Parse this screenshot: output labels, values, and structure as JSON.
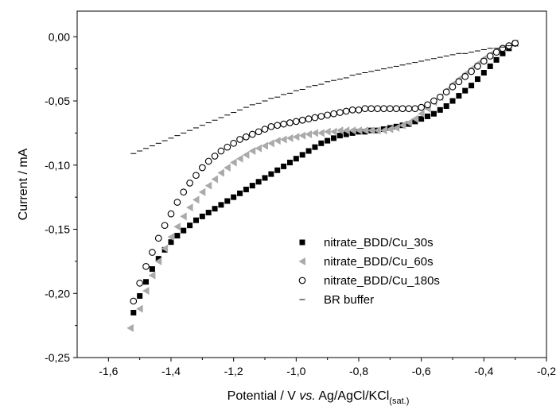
{
  "chart_data": {
    "type": "scatter",
    "xlabel": {
      "prefix": "Potential / V ",
      "italic": "vs.",
      "main": " Ag/AgCl/KCl",
      "subscript": "(sat.)"
    },
    "ylabel": "Current / mA",
    "xlim": [
      -1.7,
      -0.2
    ],
    "ylim": [
      -0.25,
      0.02
    ],
    "x_ticks": [
      -1.6,
      -1.4,
      -1.2,
      -1.0,
      -0.8,
      -0.6,
      -0.4,
      -0.2
    ],
    "x_tick_labels": [
      "-1,6",
      "-1,4",
      "-1,2",
      "-1,0",
      "-0,8",
      "-0,6",
      "-0,4",
      "-0,2"
    ],
    "y_ticks": [
      0.0,
      -0.05,
      -0.1,
      -0.15,
      -0.2,
      -0.25
    ],
    "y_tick_labels": [
      "0,00",
      "-0,05",
      "-0,10",
      "-0,15",
      "-0,20",
      "-0,25"
    ],
    "grid": false,
    "legend_position": "bottom-right",
    "series": [
      {
        "name": "nitrate_BDD/Cu_30s",
        "marker": "square",
        "color": "#000000",
        "x": [
          -1.52,
          -1.5,
          -1.48,
          -1.46,
          -1.44,
          -1.42,
          -1.4,
          -1.38,
          -1.36,
          -1.34,
          -1.32,
          -1.3,
          -1.28,
          -1.26,
          -1.24,
          -1.22,
          -1.2,
          -1.18,
          -1.16,
          -1.14,
          -1.12,
          -1.1,
          -1.08,
          -1.06,
          -1.04,
          -1.02,
          -1.0,
          -0.98,
          -0.96,
          -0.94,
          -0.92,
          -0.9,
          -0.88,
          -0.86,
          -0.84,
          -0.82,
          -0.8,
          -0.78,
          -0.76,
          -0.74,
          -0.72,
          -0.7,
          -0.68,
          -0.66,
          -0.64,
          -0.62,
          -0.6,
          -0.58,
          -0.56,
          -0.54,
          -0.52,
          -0.5,
          -0.48,
          -0.46,
          -0.44,
          -0.42,
          -0.4,
          -0.38,
          -0.36,
          -0.34,
          -0.32,
          -0.3
        ],
        "y": [
          -0.215,
          -0.202,
          -0.191,
          -0.181,
          -0.173,
          -0.166,
          -0.16,
          -0.155,
          -0.151,
          -0.147,
          -0.143,
          -0.14,
          -0.137,
          -0.134,
          -0.131,
          -0.128,
          -0.125,
          -0.122,
          -0.119,
          -0.116,
          -0.113,
          -0.11,
          -0.107,
          -0.104,
          -0.101,
          -0.098,
          -0.095,
          -0.092,
          -0.089,
          -0.086,
          -0.083,
          -0.081,
          -0.079,
          -0.077,
          -0.076,
          -0.075,
          -0.074,
          -0.074,
          -0.073,
          -0.073,
          -0.072,
          -0.071,
          -0.07,
          -0.069,
          -0.068,
          -0.066,
          -0.064,
          -0.062,
          -0.06,
          -0.057,
          -0.054,
          -0.05,
          -0.046,
          -0.042,
          -0.038,
          -0.033,
          -0.028,
          -0.023,
          -0.018,
          -0.013,
          -0.009,
          -0.005
        ]
      },
      {
        "name": "nitrate_BDD/Cu_60s",
        "marker": "triangle-left",
        "color": "#aaaaaa",
        "x": [
          -1.53,
          -1.5,
          -1.48,
          -1.46,
          -1.44,
          -1.42,
          -1.4,
          -1.38,
          -1.36,
          -1.34,
          -1.32,
          -1.3,
          -1.28,
          -1.26,
          -1.24,
          -1.22,
          -1.2,
          -1.18,
          -1.16,
          -1.14,
          -1.12,
          -1.1,
          -1.08,
          -1.06,
          -1.04,
          -1.02,
          -1.0,
          -0.98,
          -0.96,
          -0.94,
          -0.92,
          -0.9,
          -0.88,
          -0.86,
          -0.84,
          -0.82,
          -0.8,
          -0.78,
          -0.76,
          -0.74,
          -0.72,
          -0.7,
          -0.68,
          -0.66,
          -0.64,
          -0.62,
          -0.6,
          -0.58,
          -0.56,
          -0.54,
          -0.52,
          -0.5,
          -0.48,
          -0.46,
          -0.44,
          -0.42,
          -0.4,
          -0.38,
          -0.36,
          -0.34,
          -0.32,
          -0.3
        ],
        "y": [
          -0.227,
          -0.212,
          -0.198,
          -0.186,
          -0.175,
          -0.165,
          -0.156,
          -0.148,
          -0.14,
          -0.133,
          -0.127,
          -0.121,
          -0.116,
          -0.111,
          -0.106,
          -0.102,
          -0.098,
          -0.095,
          -0.092,
          -0.089,
          -0.087,
          -0.085,
          -0.083,
          -0.081,
          -0.08,
          -0.079,
          -0.078,
          -0.077,
          -0.076,
          -0.075,
          -0.075,
          -0.074,
          -0.074,
          -0.073,
          -0.073,
          -0.073,
          -0.073,
          -0.073,
          -0.073,
          -0.073,
          -0.073,
          -0.072,
          -0.071,
          -0.069,
          -0.067,
          -0.064,
          -0.06,
          -0.056,
          -0.051,
          -0.047,
          -0.042,
          -0.037,
          -0.033,
          -0.029,
          -0.025,
          -0.021,
          -0.017,
          -0.014,
          -0.011,
          -0.009,
          -0.007,
          -0.005
        ]
      },
      {
        "name": "nitrate_BDD/Cu_180s",
        "marker": "circle-open",
        "color": "#000000",
        "x": [
          -1.52,
          -1.5,
          -1.48,
          -1.46,
          -1.44,
          -1.42,
          -1.4,
          -1.38,
          -1.36,
          -1.34,
          -1.32,
          -1.3,
          -1.28,
          -1.26,
          -1.24,
          -1.22,
          -1.2,
          -1.18,
          -1.16,
          -1.14,
          -1.12,
          -1.1,
          -1.08,
          -1.06,
          -1.04,
          -1.02,
          -1.0,
          -0.98,
          -0.96,
          -0.94,
          -0.92,
          -0.9,
          -0.88,
          -0.86,
          -0.84,
          -0.82,
          -0.8,
          -0.78,
          -0.76,
          -0.74,
          -0.72,
          -0.7,
          -0.68,
          -0.66,
          -0.64,
          -0.62,
          -0.6,
          -0.58,
          -0.56,
          -0.54,
          -0.52,
          -0.5,
          -0.48,
          -0.46,
          -0.44,
          -0.42,
          -0.4,
          -0.38,
          -0.36,
          -0.34,
          -0.32,
          -0.3
        ],
        "y": [
          -0.206,
          -0.192,
          -0.179,
          -0.168,
          -0.157,
          -0.147,
          -0.138,
          -0.129,
          -0.121,
          -0.114,
          -0.108,
          -0.102,
          -0.097,
          -0.093,
          -0.089,
          -0.086,
          -0.083,
          -0.08,
          -0.078,
          -0.076,
          -0.074,
          -0.072,
          -0.07,
          -0.069,
          -0.068,
          -0.067,
          -0.066,
          -0.065,
          -0.064,
          -0.063,
          -0.062,
          -0.061,
          -0.06,
          -0.059,
          -0.058,
          -0.057,
          -0.057,
          -0.056,
          -0.056,
          -0.056,
          -0.056,
          -0.056,
          -0.056,
          -0.056,
          -0.056,
          -0.056,
          -0.055,
          -0.053,
          -0.05,
          -0.047,
          -0.043,
          -0.039,
          -0.035,
          -0.031,
          -0.027,
          -0.023,
          -0.019,
          -0.015,
          -0.012,
          -0.009,
          -0.007,
          -0.005
        ]
      },
      {
        "name": "BR buffer",
        "marker": "dash",
        "color": "#000000",
        "x": [
          -1.52,
          -1.5,
          -1.48,
          -1.46,
          -1.44,
          -1.42,
          -1.4,
          -1.38,
          -1.36,
          -1.34,
          -1.32,
          -1.3,
          -1.28,
          -1.26,
          -1.24,
          -1.22,
          -1.2,
          -1.18,
          -1.16,
          -1.14,
          -1.12,
          -1.1,
          -1.08,
          -1.06,
          -1.04,
          -1.02,
          -1.0,
          -0.98,
          -0.96,
          -0.94,
          -0.92,
          -0.9,
          -0.88,
          -0.86,
          -0.84,
          -0.82,
          -0.8,
          -0.78,
          -0.76,
          -0.74,
          -0.72,
          -0.7,
          -0.68,
          -0.66,
          -0.64,
          -0.62,
          -0.6,
          -0.58,
          -0.56,
          -0.54,
          -0.52,
          -0.5,
          -0.48,
          -0.46,
          -0.44,
          -0.42,
          -0.4,
          -0.38,
          -0.36,
          -0.34,
          -0.32,
          -0.3
        ],
        "y": [
          -0.091,
          -0.089,
          -0.087,
          -0.085,
          -0.083,
          -0.081,
          -0.079,
          -0.077,
          -0.075,
          -0.073,
          -0.071,
          -0.069,
          -0.067,
          -0.065,
          -0.063,
          -0.061,
          -0.059,
          -0.057,
          -0.055,
          -0.053,
          -0.052,
          -0.05,
          -0.048,
          -0.047,
          -0.045,
          -0.044,
          -0.042,
          -0.041,
          -0.039,
          -0.038,
          -0.037,
          -0.035,
          -0.034,
          -0.033,
          -0.032,
          -0.03,
          -0.029,
          -0.028,
          -0.027,
          -0.026,
          -0.025,
          -0.024,
          -0.023,
          -0.022,
          -0.021,
          -0.02,
          -0.019,
          -0.018,
          -0.017,
          -0.016,
          -0.015,
          -0.014,
          -0.013,
          -0.013,
          -0.012,
          -0.011,
          -0.01,
          -0.009,
          -0.009,
          -0.008,
          -0.007,
          -0.007
        ]
      }
    ]
  }
}
